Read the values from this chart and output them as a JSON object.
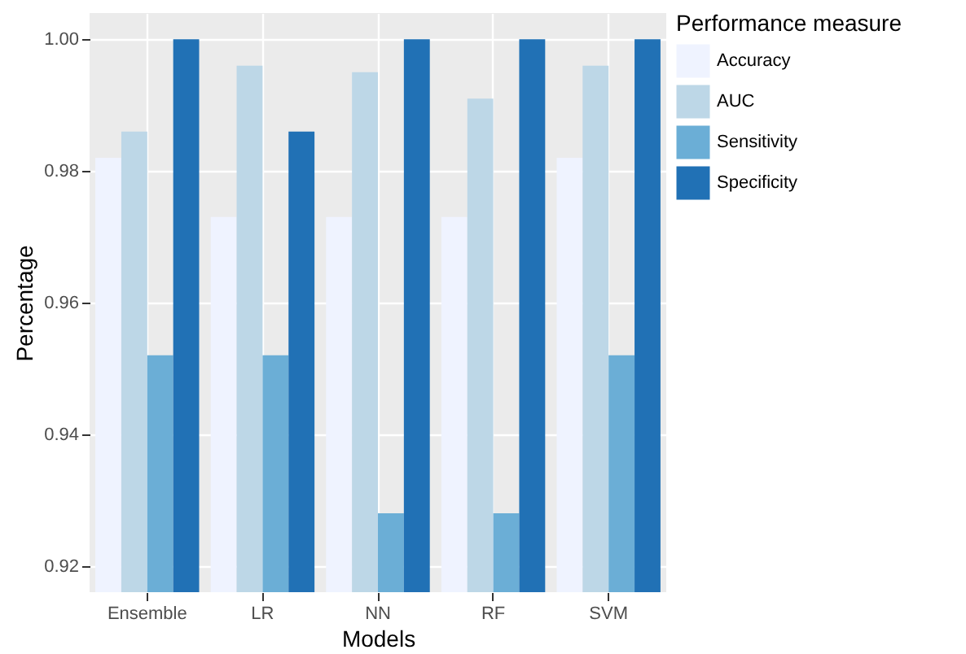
{
  "chart_data": {
    "type": "bar",
    "xlabel": "Models",
    "ylabel": "Percentage",
    "legend_title": "Performance measure",
    "categories": [
      "Ensemble",
      "LR",
      "NN",
      "RF",
      "SVM"
    ],
    "series": [
      {
        "name": "Accuracy",
        "color": "#eff3ff",
        "values": [
          0.982,
          0.973,
          0.973,
          0.973,
          0.982
        ]
      },
      {
        "name": "AUC",
        "color": "#bdd7e7",
        "values": [
          0.986,
          0.996,
          0.995,
          0.991,
          0.996
        ]
      },
      {
        "name": "Sensitivity",
        "color": "#6baed6",
        "values": [
          0.952,
          0.952,
          0.928,
          0.928,
          0.952
        ]
      },
      {
        "name": "Specificity",
        "color": "#2171b5",
        "values": [
          1.0,
          0.986,
          1.0,
          1.0,
          1.0
        ]
      }
    ],
    "ylim": [
      0.916,
      1.004
    ],
    "yticks": [
      0.92,
      0.94,
      0.96,
      0.98,
      {
        "value": 1.0,
        "label": "1.00"
      }
    ],
    "grid": true,
    "legend": "right"
  }
}
